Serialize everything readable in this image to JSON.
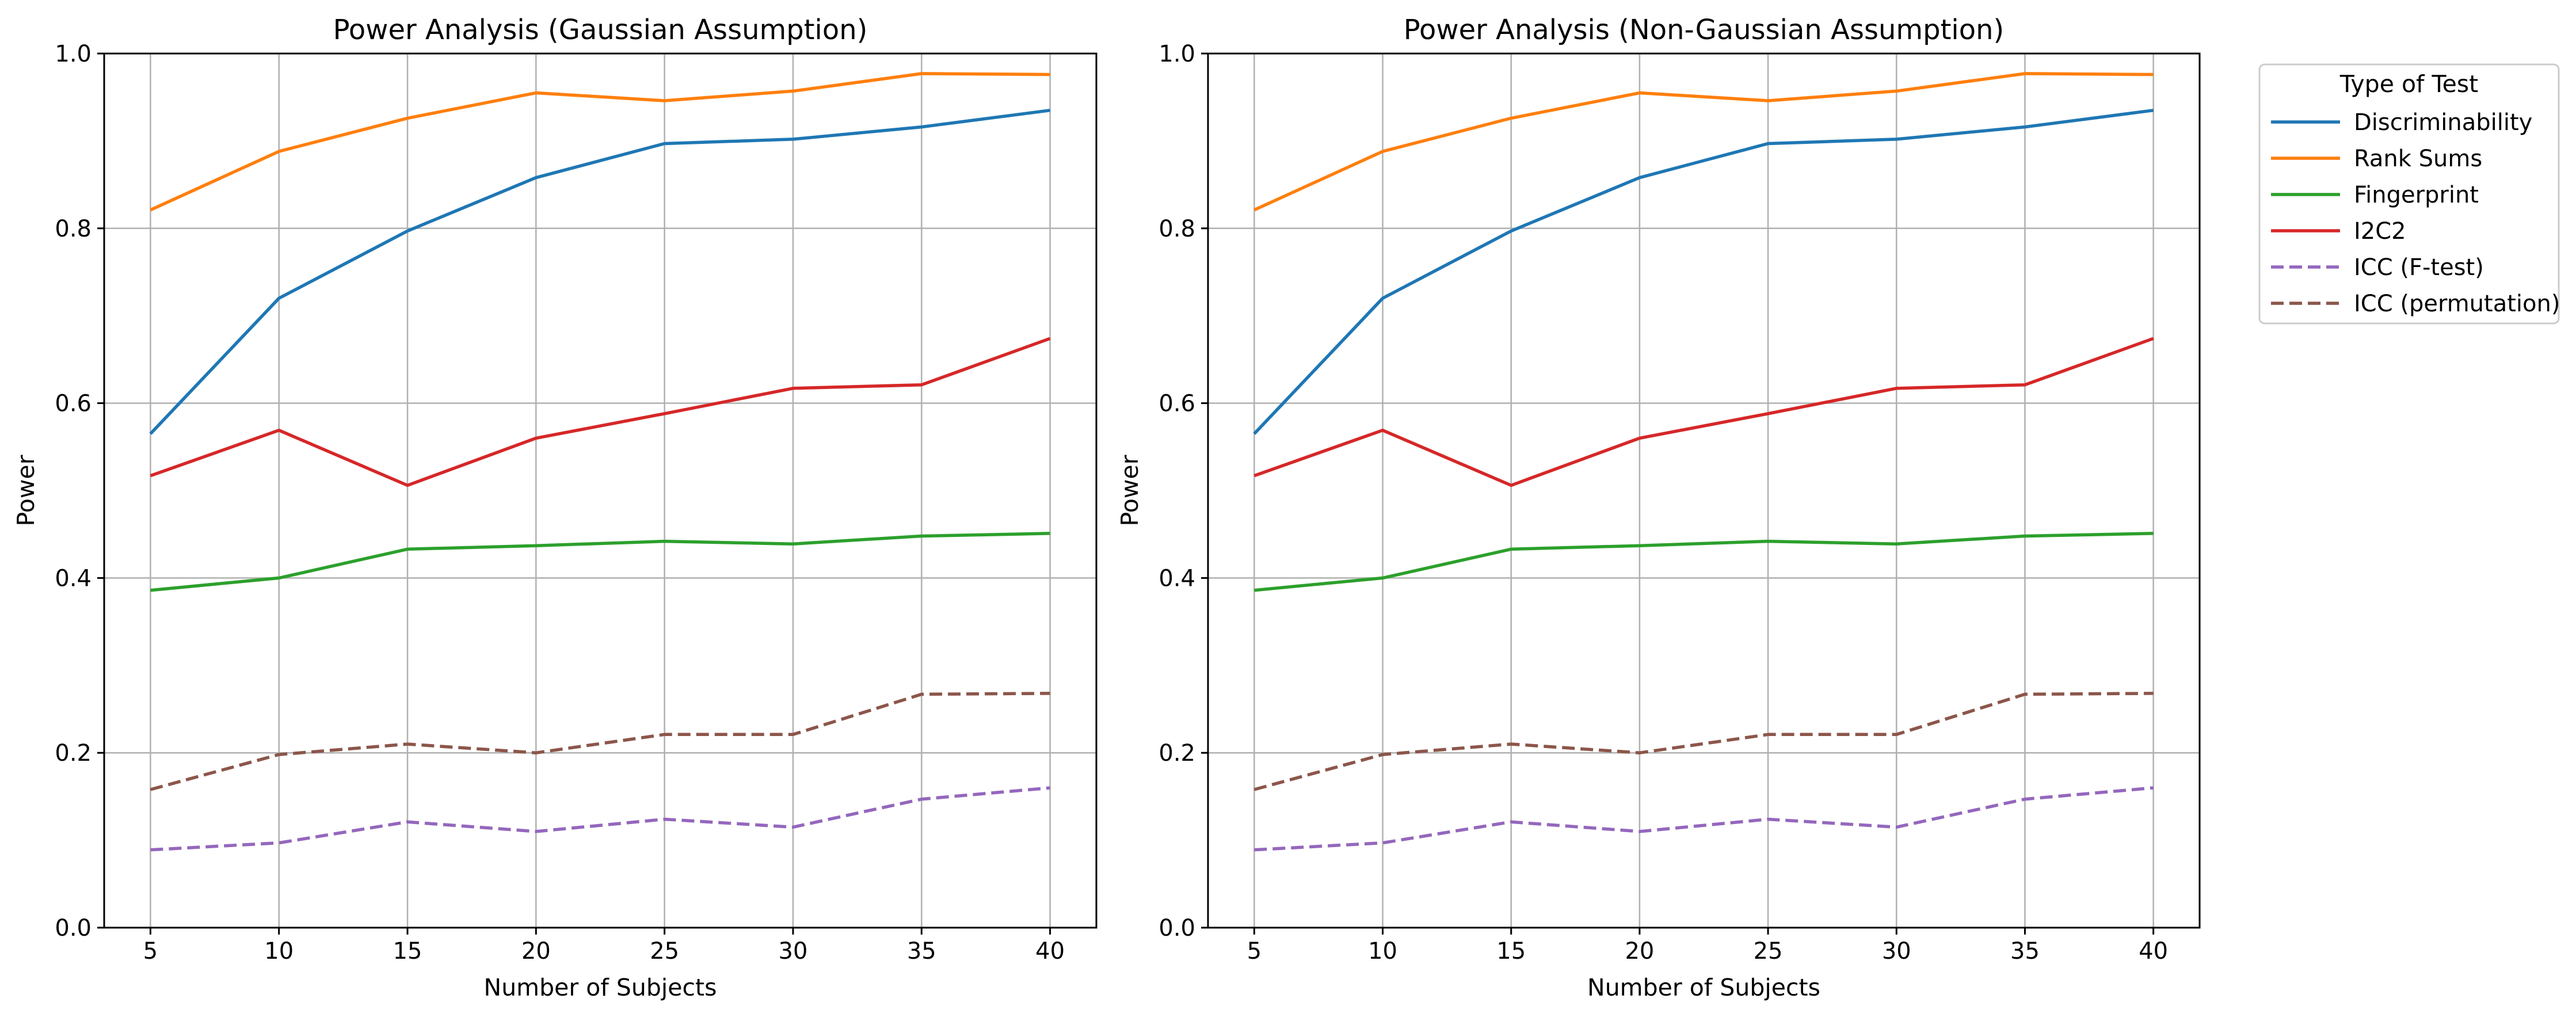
{
  "chart_data": [
    {
      "type": "line",
      "title": "Power Analysis (Gaussian Assumption)",
      "xlabel": "Number of Subjects",
      "ylabel": "Power",
      "x": [
        5,
        10,
        15,
        20,
        25,
        30,
        35,
        40
      ],
      "xlim": [
        3.2,
        41.8
      ],
      "ylim": [
        0,
        1
      ],
      "xticks": [
        "5",
        "10",
        "15",
        "20",
        "25",
        "30",
        "35",
        "40"
      ],
      "yticks": [
        "0.0",
        "0.2",
        "0.4",
        "0.6",
        "0.8",
        "1.0"
      ],
      "grid": true,
      "series": [
        {
          "name": "Discriminability",
          "color": "#1f77b4",
          "dashed": false,
          "values": [
            0.565,
            0.72,
            0.797,
            0.858,
            0.897,
            0.902,
            0.916,
            0.935
          ]
        },
        {
          "name": "Rank Sums",
          "color": "#ff7f0e",
          "dashed": false,
          "values": [
            0.821,
            0.888,
            0.926,
            0.955,
            0.946,
            0.957,
            0.977,
            0.976
          ]
        },
        {
          "name": "Fingerprint",
          "color": "#2ca02c",
          "dashed": false,
          "values": [
            0.386,
            0.4,
            0.433,
            0.437,
            0.442,
            0.439,
            0.448,
            0.451
          ]
        },
        {
          "name": "I2C2",
          "color": "#d62728",
          "dashed": false,
          "values": [
            0.517,
            0.569,
            0.506,
            0.56,
            0.588,
            0.617,
            0.621,
            0.674
          ]
        },
        {
          "name": "ICC (F-test)",
          "color": "#9467bd",
          "dashed": true,
          "values": [
            0.089,
            0.097,
            0.121,
            0.11,
            0.124,
            0.115,
            0.147,
            0.16
          ]
        },
        {
          "name": "ICC (permutation)",
          "color": "#8c564b",
          "dashed": true,
          "values": [
            0.158,
            0.198,
            0.21,
            0.2,
            0.221,
            0.221,
            0.267,
            0.268
          ]
        }
      ]
    },
    {
      "type": "line",
      "title": "Power Analysis (Non-Gaussian Assumption)",
      "xlabel": "Number of Subjects",
      "ylabel": "Power",
      "x": [
        5,
        10,
        15,
        20,
        25,
        30,
        35,
        40
      ],
      "xlim": [
        3.2,
        41.8
      ],
      "ylim": [
        0,
        1
      ],
      "xticks": [
        "5",
        "10",
        "15",
        "20",
        "25",
        "30",
        "35",
        "40"
      ],
      "yticks": [
        "0.0",
        "0.2",
        "0.4",
        "0.6",
        "0.8",
        "1.0"
      ],
      "grid": true,
      "series": [
        {
          "name": "Discriminability",
          "color": "#1f77b4",
          "dashed": false,
          "values": [
            0.565,
            0.72,
            0.797,
            0.858,
            0.897,
            0.902,
            0.916,
            0.935
          ]
        },
        {
          "name": "Rank Sums",
          "color": "#ff7f0e",
          "dashed": false,
          "values": [
            0.821,
            0.888,
            0.926,
            0.955,
            0.946,
            0.957,
            0.977,
            0.976
          ]
        },
        {
          "name": "Fingerprint",
          "color": "#2ca02c",
          "dashed": false,
          "values": [
            0.386,
            0.4,
            0.433,
            0.437,
            0.442,
            0.439,
            0.448,
            0.451
          ]
        },
        {
          "name": "I2C2",
          "color": "#d62728",
          "dashed": false,
          "values": [
            0.517,
            0.569,
            0.506,
            0.56,
            0.588,
            0.617,
            0.621,
            0.674
          ]
        },
        {
          "name": "ICC (F-test)",
          "color": "#9467bd",
          "dashed": true,
          "values": [
            0.089,
            0.097,
            0.121,
            0.11,
            0.124,
            0.115,
            0.147,
            0.16
          ]
        },
        {
          "name": "ICC (permutation)",
          "color": "#8c564b",
          "dashed": true,
          "values": [
            0.158,
            0.198,
            0.21,
            0.2,
            0.221,
            0.221,
            0.267,
            0.268
          ]
        }
      ]
    }
  ],
  "legend": {
    "title": "Type of Test",
    "placement": "outside-right, top"
  }
}
